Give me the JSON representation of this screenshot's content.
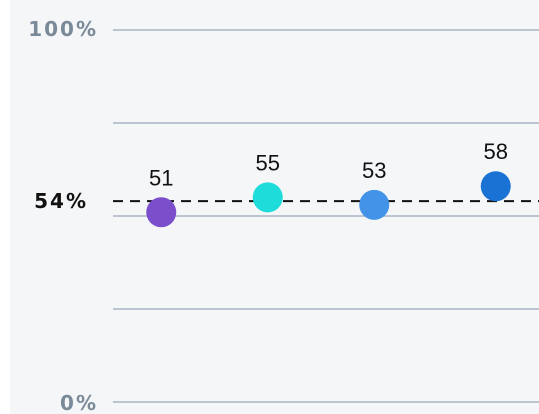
{
  "chart_data": {
    "type": "scatter",
    "categories": [
      "",
      "",
      "",
      ""
    ],
    "values": [
      51,
      55,
      53,
      58
    ],
    "data_labels": [
      "51",
      "55",
      "53",
      "58"
    ],
    "colors": [
      "#7b4fcc",
      "#1edcd9",
      "#4394e8",
      "#1a73d4"
    ],
    "ylim": [
      0,
      100
    ],
    "y_ticks": [
      {
        "value": 100,
        "label": "100%"
      },
      {
        "value": 0,
        "label": "0%"
      }
    ],
    "gridlines": [
      0,
      25,
      50,
      75,
      100
    ],
    "reference_line": {
      "value": 54,
      "label": "54%",
      "style": "dashed"
    },
    "grid": true,
    "gridline_color": "#a9b4c2"
  }
}
